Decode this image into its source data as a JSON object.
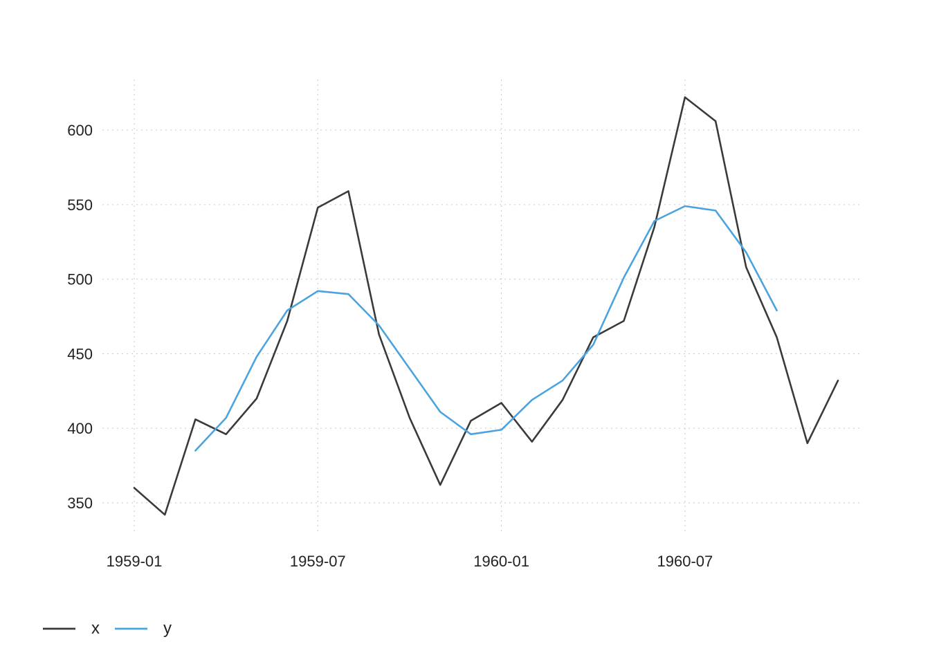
{
  "chart_data": {
    "type": "line",
    "title": "",
    "xlabel": "",
    "ylabel": "",
    "x": [
      "1959-01",
      "1959-02",
      "1959-03",
      "1959-04",
      "1959-05",
      "1959-06",
      "1959-07",
      "1959-08",
      "1959-09",
      "1959-10",
      "1959-11",
      "1959-12",
      "1960-01",
      "1960-02",
      "1960-03",
      "1960-04",
      "1960-05",
      "1960-06",
      "1960-07",
      "1960-08",
      "1960-09",
      "1960-10",
      "1960-11",
      "1960-12"
    ],
    "x_ticks": [
      "1959-01",
      "1959-07",
      "1960-01",
      "1960-07"
    ],
    "y_ticks": [
      350,
      400,
      450,
      500,
      550,
      600
    ],
    "ylim": [
      325,
      632
    ],
    "xlim": [
      "1959-01",
      "1960-12"
    ],
    "grid": true,
    "legend_position": "bottom-left",
    "series": [
      {
        "name": "x",
        "color": "#3a3a3a",
        "values": [
          360,
          342,
          406,
          396,
          420,
          472,
          548,
          559,
          463,
          407,
          362,
          405,
          417,
          391,
          419,
          461,
          472,
          535,
          622,
          606,
          508,
          461,
          390,
          432
        ]
      },
      {
        "name": "y",
        "color": "#4aa3df",
        "values": [
          null,
          null,
          385,
          407,
          448,
          479,
          492,
          490,
          469,
          440,
          411,
          396,
          399,
          419,
          432,
          456,
          501,
          539,
          549,
          546,
          518,
          479,
          null,
          null
        ]
      }
    ]
  }
}
